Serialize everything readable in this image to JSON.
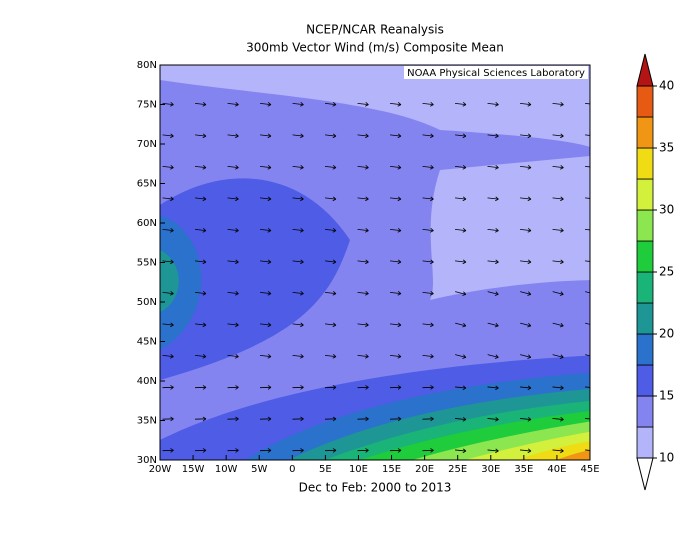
{
  "title": "NCEP/NCAR Reanalysis",
  "subtitle": "300mb Vector Wind (m/s) Composite Mean",
  "credit": "NOAA Physical Sciences Laboratory",
  "footer": "Dec to Feb: 2000 to 2013",
  "map": {
    "xlim": [
      -20,
      45
    ],
    "ylim": [
      30,
      80
    ],
    "xticks": [
      {
        "value": -20,
        "label": "20W"
      },
      {
        "value": -15,
        "label": "15W"
      },
      {
        "value": -10,
        "label": "10W"
      },
      {
        "value": -5,
        "label": "5W"
      },
      0,
      {
        "value": 5,
        "label": "5E"
      },
      {
        "value": 10,
        "label": "10E"
      },
      {
        "value": 15,
        "label": "15E"
      },
      {
        "value": 20,
        "label": "20E"
      },
      {
        "value": 25,
        "label": "25E"
      },
      {
        "value": 30,
        "label": "30E"
      },
      {
        "value": 35,
        "label": "35E"
      },
      {
        "value": 40,
        "label": "40E"
      },
      {
        "value": 45,
        "label": "45E"
      }
    ],
    "yticks": [
      {
        "value": 30,
        "label": "30N"
      },
      {
        "value": 35,
        "label": "35N"
      },
      {
        "value": 40,
        "label": "40N"
      },
      {
        "value": 45,
        "label": "45N"
      },
      {
        "value": 50,
        "label": "50N"
      },
      {
        "value": 55,
        "label": "55N"
      },
      {
        "value": 60,
        "label": "60N"
      },
      {
        "value": 65,
        "label": "65N"
      },
      {
        "value": 70,
        "label": "70N"
      },
      {
        "value": 75,
        "label": "75N"
      },
      {
        "value": 80,
        "label": "80N"
      }
    ]
  },
  "colorbar": {
    "range": [
      10,
      40
    ],
    "ticks": [
      10,
      15,
      20,
      25,
      30,
      35,
      40
    ],
    "colors": [
      "#b4b4fa",
      "#8484f0",
      "#4e5ce6",
      "#2a72cc",
      "#1e9696",
      "#1ab478",
      "#1ecc3c",
      "#8ce650",
      "#d2f03c",
      "#f0dc14",
      "#f09614",
      "#e65a14"
    ],
    "over_color": "#b41414",
    "under_color": "#ffffff"
  }
}
